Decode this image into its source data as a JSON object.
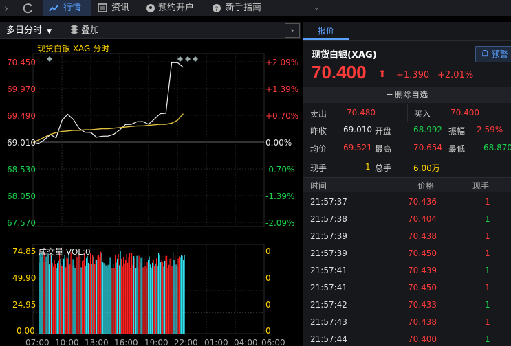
{
  "nav": {
    "tabs": [
      {
        "label": "行情",
        "active": true
      },
      {
        "label": "资讯"
      },
      {
        "label": "预约开户"
      },
      {
        "label": "新手指南"
      }
    ]
  },
  "chart_bar": {
    "period_label": "多日分时",
    "overlay_label": "叠加"
  },
  "chart": {
    "title": "现货白银 XAG 分时",
    "price_ticks": [
      "70.450",
      "69.970",
      "69.490",
      "69.010",
      "68.530",
      "68.050",
      "67.570"
    ],
    "pct_ticks": [
      "+2.09%",
      "+1.39%",
      "+0.70%",
      "0.00%",
      "-0.70%",
      "-1.39%",
      "-2.09%"
    ],
    "volume_label": "成交量 VOL:0",
    "vol_ticks_left": [
      "74.85",
      "49.90",
      "24.95",
      "0.00"
    ],
    "vol_ticks_right": [
      "0",
      "0",
      "0",
      "0"
    ],
    "time_ticks": [
      "07:00",
      "10:00",
      "13:00",
      "16:00",
      "19:00",
      "22:00",
      "01:00",
      "04:00",
      "06:00"
    ]
  },
  "chart_data": {
    "type": "line",
    "title": "现货白银 XAG 分时",
    "x_labels": [
      "07:00",
      "10:00",
      "13:00",
      "16:00",
      "19:00",
      "22:00",
      "01:00",
      "04:00",
      "06:00"
    ],
    "ylim": [
      67.57,
      70.45
    ],
    "series": [
      {
        "name": "price",
        "values": [
          69.0,
          69.02,
          69.1,
          69.15,
          69.05,
          69.35,
          69.5,
          69.45,
          69.3,
          69.2,
          69.15,
          69.05,
          69.1,
          69.15,
          69.2,
          69.25,
          69.3,
          69.28,
          69.35,
          69.4,
          69.38,
          69.45,
          69.5,
          69.48,
          70.4,
          70.45,
          70.4
        ]
      },
      {
        "name": "average",
        "values": [
          69.0,
          69.05,
          69.1,
          69.15,
          69.18,
          69.2,
          69.21,
          69.22,
          69.22,
          69.23,
          69.23,
          69.24,
          69.25,
          69.25,
          69.26,
          69.27,
          69.28,
          69.29,
          69.3,
          69.3,
          69.31,
          69.32,
          69.33,
          69.33,
          69.35,
          69.4,
          69.52
        ]
      }
    ],
    "volume": {
      "ylim": [
        0,
        74.85
      ]
    }
  },
  "quote": {
    "tab_label": "报价",
    "name": "现货白银(XAG)",
    "alert_label": "预警",
    "price": "70.400",
    "arrow": "⬆",
    "change": "+1.390",
    "change_pct": "+2.01%",
    "remove_label": "删除自选",
    "sell_label": "卖出",
    "sell_price": "70.480",
    "sell_vol": "---",
    "buy_label": "买入",
    "buy_price": "70.400",
    "buy_vol": "---",
    "prev_close_label": "昨收",
    "prev_close": "69.010",
    "open_label": "开盘",
    "open": "68.992",
    "amplitude_label": "振幅",
    "amplitude": "2.59%",
    "avg_label": "均价",
    "avg": "69.521",
    "high_label": "最高",
    "high": "70.654",
    "low_label": "最低",
    "low": "68.870",
    "cur_vol_label": "现手",
    "cur_vol": "1",
    "total_vol_label": "总手",
    "total_vol": "6.00万"
  },
  "trades": {
    "headers": [
      "时间",
      "价格",
      "现手"
    ],
    "rows": [
      {
        "time": "21:57:37",
        "price": "70.436",
        "vol": "1",
        "dir": "up"
      },
      {
        "time": "21:57:38",
        "price": "70.404",
        "vol": "1",
        "dir": "down"
      },
      {
        "time": "21:57:39",
        "price": "70.438",
        "vol": "1",
        "dir": "up"
      },
      {
        "time": "21:57:39",
        "price": "70.450",
        "vol": "1",
        "dir": "up"
      },
      {
        "time": "21:57:41",
        "price": "70.439",
        "vol": "1",
        "dir": "down"
      },
      {
        "time": "21:57:41",
        "price": "70.450",
        "vol": "1",
        "dir": "up"
      },
      {
        "time": "21:57:42",
        "price": "70.433",
        "vol": "1",
        "dir": "down"
      },
      {
        "time": "21:57:43",
        "price": "70.438",
        "vol": "1",
        "dir": "up"
      },
      {
        "time": "21:57:44",
        "price": "70.400",
        "vol": "1",
        "dir": "down"
      }
    ]
  },
  "colors": {
    "up": "#ff3b3b",
    "down": "#19d24a",
    "accent": "#5aa0ff",
    "avg_line": "#e0c040"
  }
}
